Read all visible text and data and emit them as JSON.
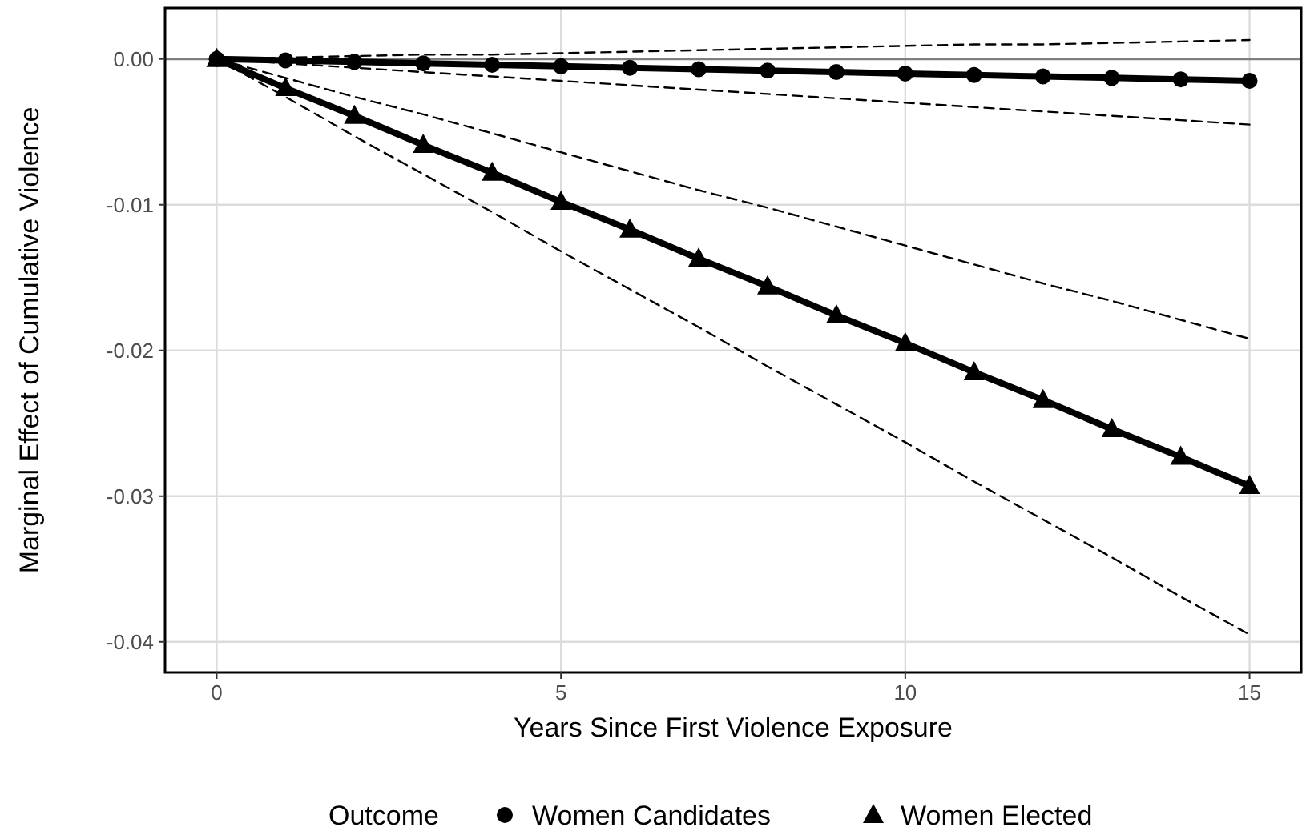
{
  "chart_data": {
    "type": "line",
    "xlabel": "Years Since First Violence Exposure",
    "ylabel": "Marginal Effect of Cumulative Violence",
    "legend_title": "Outcome",
    "legend": "bottom",
    "grid": true,
    "x": [
      0,
      1,
      2,
      3,
      4,
      5,
      6,
      7,
      8,
      9,
      10,
      11,
      12,
      13,
      14,
      15
    ],
    "xlim": [
      -0.75,
      15.75
    ],
    "xticks": [
      0,
      5,
      10,
      15
    ],
    "ylim": [
      -0.0421,
      0.0035
    ],
    "yticks": [
      {
        "value": 0,
        "label": "0.00"
      },
      {
        "value": -0.01,
        "label": "-0.01"
      },
      {
        "value": -0.02,
        "label": "-0.02"
      },
      {
        "value": -0.03,
        "label": "-0.03"
      },
      {
        "value": -0.04,
        "label": "-0.04"
      }
    ],
    "ref_lines": [
      {
        "axis": "y",
        "value": 0,
        "color": "#7f7f7f"
      }
    ],
    "series": [
      {
        "name": "Women Candidates",
        "color": "#000000",
        "marker": "circle",
        "line_style": "solid",
        "values": [
          0,
          -0.0001,
          -0.0002,
          -0.0003,
          -0.0004,
          -0.0005,
          -0.0006,
          -0.0007,
          -0.0008,
          -0.0009,
          -0.001,
          -0.0011,
          -0.0012,
          -0.0013,
          -0.0014,
          -0.0015
        ]
      },
      {
        "name": "Women Elected",
        "color": "#000000",
        "marker": "triangle",
        "line_style": "solid",
        "values": [
          0,
          -0.002,
          -0.0039,
          -0.0059,
          -0.0078,
          -0.0098,
          -0.0117,
          -0.0137,
          -0.0156,
          -0.0176,
          -0.0195,
          -0.0215,
          -0.0234,
          -0.0254,
          -0.0273,
          -0.0293
        ]
      },
      {
        "color": "#000000",
        "marker": "none",
        "line_style": "dashed",
        "values": [
          0,
          0.0001,
          0.0002,
          0.0003,
          0.0003,
          0.0004,
          0.0005,
          0.0006,
          0.0007,
          0.0008,
          0.0009,
          0.001,
          0.001,
          0.0011,
          0.0012,
          0.0013
        ]
      },
      {
        "color": "#000000",
        "marker": "none",
        "line_style": "dashed",
        "values": [
          0,
          -0.0003,
          -0.0006,
          -0.0009,
          -0.0012,
          -0.0015,
          -0.0018,
          -0.0021,
          -0.0024,
          -0.0027,
          -0.003,
          -0.0033,
          -0.0036,
          -0.0039,
          -0.0042,
          -0.0045
        ]
      },
      {
        "color": "#000000",
        "marker": "none",
        "line_style": "dashed",
        "values": [
          0,
          -0.0013,
          -0.0026,
          -0.0038,
          -0.0051,
          -0.0064,
          -0.0077,
          -0.009,
          -0.0102,
          -0.0115,
          -0.0128,
          -0.0141,
          -0.0154,
          -0.0166,
          -0.0179,
          -0.0192
        ]
      },
      {
        "color": "#000000",
        "marker": "none",
        "line_style": "dashed",
        "values": [
          0,
          -0.0026,
          -0.0053,
          -0.0079,
          -0.0105,
          -0.0132,
          -0.0158,
          -0.0184,
          -0.0211,
          -0.0237,
          -0.0263,
          -0.029,
          -0.0316,
          -0.0342,
          -0.0369,
          -0.0395
        ]
      }
    ]
  }
}
